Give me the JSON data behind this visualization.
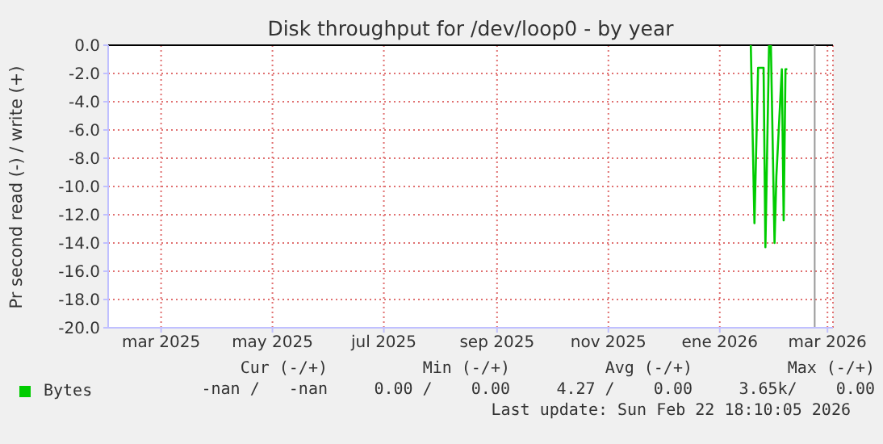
{
  "chart_data": {
    "type": "line",
    "title": "Disk throughput for /dev/loop0 - by year",
    "ylabel": "Pr second read (-) / write (+)",
    "series": [
      {
        "name": "Bytes",
        "color": "#00cc00",
        "x": [
          "2026-01-18",
          "2026-01-20",
          "2026-01-22",
          "2026-01-25",
          "2026-01-26",
          "2026-01-28",
          "2026-01-29",
          "2026-01-31",
          "2026-02-01",
          "2026-02-04",
          "2026-02-05",
          "2026-02-06",
          "2026-02-07"
        ],
        "values": [
          0,
          -12.6,
          -1.6,
          -1.6,
          -14.3,
          0,
          0,
          -14.0,
          -9.3,
          -1.7,
          -12.4,
          -1.7,
          -1.7
        ]
      }
    ],
    "xlim": [
      "2025-01-31",
      "2026-03-04"
    ],
    "xticks": [
      {
        "value": "2025-03-01",
        "label": "mar 2025"
      },
      {
        "value": "2025-05-01",
        "label": "may 2025"
      },
      {
        "value": "2025-07-01",
        "label": "jul 2025"
      },
      {
        "value": "2025-09-01",
        "label": "sep 2025"
      },
      {
        "value": "2025-11-01",
        "label": "nov 2025"
      },
      {
        "value": "2026-01-01",
        "label": "ene 2026"
      },
      {
        "value": "2026-03-01",
        "label": "mar 2026"
      }
    ],
    "ylim": [
      -20,
      0
    ],
    "yticks": [
      {
        "value": -20,
        "label": "-20.0"
      },
      {
        "value": -18,
        "label": "-18.0"
      },
      {
        "value": -16,
        "label": "-16.0"
      },
      {
        "value": -14,
        "label": "-14.0"
      },
      {
        "value": -12,
        "label": "-12.0"
      },
      {
        "value": -10,
        "label": "-10.0"
      },
      {
        "value": -8,
        "label": "-8.0"
      },
      {
        "value": -6,
        "label": "-6.0"
      },
      {
        "value": -4,
        "label": "-4.0"
      },
      {
        "value": -2,
        "label": "-2.0"
      },
      {
        "value": 0,
        "label": "0.0"
      }
    ],
    "ref_lines": [
      {
        "axis": "y",
        "value": 0,
        "color": "#000000"
      },
      {
        "axis": "x",
        "value": "2026-02-22",
        "color": "#999999"
      }
    ],
    "grid": true,
    "legend": "bottom",
    "annotations": [
      "Cur (-/+)",
      "Min (-/+)",
      "Avg (-/+)",
      "Max (-/+)",
      "-nan /   -nan",
      "0.00 /    0.00",
      "4.27 /    0.00",
      "3.65k/    0.00",
      "Last update: Sun Feb 22 18:10:05 2026"
    ]
  }
}
